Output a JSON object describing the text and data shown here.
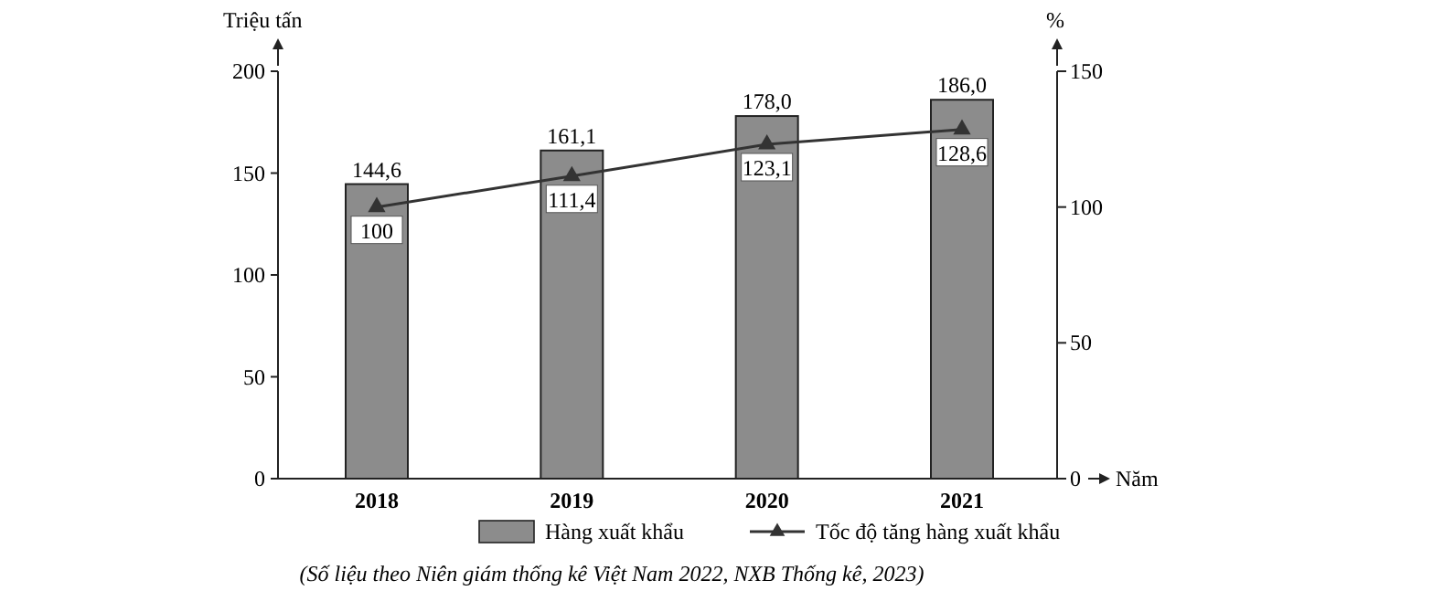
{
  "chart_data": {
    "type": "bar",
    "categories": [
      "2018",
      "2019",
      "2020",
      "2021"
    ],
    "series": [
      {
        "name": "Hàng xuất khẩu",
        "color": "#8c8c8c",
        "values": [
          144.6,
          161.1,
          178.0,
          186.0
        ],
        "value_labels": [
          "144,6",
          "161,1",
          "178,0",
          "186,0"
        ]
      },
      {
        "name": "Tốc độ tăng hàng xuất khẩu",
        "type": "line",
        "axis": "y2",
        "color": "#333333",
        "marker": "triangle",
        "values": [
          100,
          111.4,
          123.1,
          128.6
        ],
        "value_labels": [
          "100",
          "111,4",
          "123,1",
          "128,6"
        ]
      }
    ],
    "ylabel": "Triệu tấn",
    "y2label": "%",
    "xlabel": "Năm",
    "ylim": [
      0,
      200
    ],
    "yticks": [
      0,
      50,
      100,
      150,
      200
    ],
    "y2lim": [
      0,
      150
    ],
    "y2ticks": [
      0,
      50,
      100,
      150
    ],
    "grid": false,
    "legend": "bottom",
    "annotations": [
      "(Số liệu theo Niên giám thống kê Việt Nam 2022, NXB Thống kê, 2023)"
    ]
  }
}
